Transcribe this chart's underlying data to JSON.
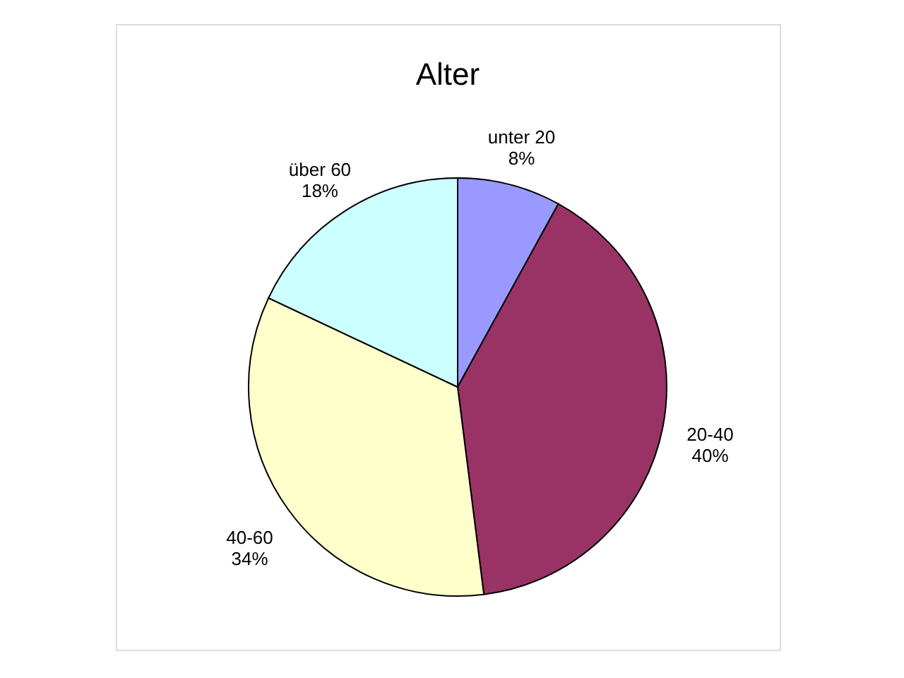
{
  "chart_data": {
    "type": "pie",
    "title": "Alter",
    "categories": [
      "unter 20",
      "20-40",
      "40-60",
      "über 60"
    ],
    "values": [
      8,
      40,
      34,
      18
    ],
    "value_labels": [
      "8%",
      "40%",
      "34%",
      "18%"
    ],
    "colors": [
      "#9999ff",
      "#993366",
      "#ffffcc",
      "#ccffff"
    ]
  }
}
